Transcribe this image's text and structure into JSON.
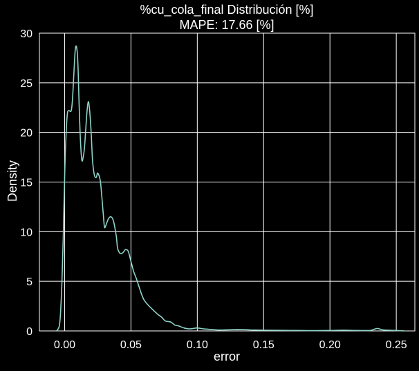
{
  "chart_data": {
    "type": "line",
    "title": "%cu_cola_final Distribución [%]",
    "subtitle": "MAPE: 17.66 [%]",
    "xlabel": "error",
    "ylabel": "Density",
    "xlim": [
      -0.019,
      0.264
    ],
    "ylim": [
      0,
      30
    ],
    "xticks": [
      0.0,
      0.05,
      0.1,
      0.15,
      0.2,
      0.25
    ],
    "xtick_labels": [
      "0.00",
      "0.05",
      "0.10",
      "0.15",
      "0.20",
      "0.25"
    ],
    "yticks": [
      0,
      5,
      10,
      15,
      20,
      25,
      30
    ],
    "ytick_labels": [
      "0",
      "5",
      "10",
      "15",
      "20",
      "25",
      "30"
    ],
    "grid": true,
    "background_color": "#000000",
    "grid_color": "#ffffff",
    "line_color": "#8dd3c7",
    "x": [
      -0.006,
      -0.004,
      -0.003,
      -0.002,
      -0.001,
      0.0,
      0.001,
      0.002,
      0.003,
      0.005,
      0.006,
      0.007,
      0.008,
      0.009,
      0.01,
      0.011,
      0.012,
      0.013,
      0.014,
      0.015,
      0.016,
      0.017,
      0.018,
      0.019,
      0.02,
      0.021,
      0.022,
      0.023,
      0.024,
      0.025,
      0.027,
      0.029,
      0.03,
      0.031,
      0.033,
      0.035,
      0.037,
      0.039,
      0.04,
      0.042,
      0.044,
      0.046,
      0.048,
      0.05,
      0.052,
      0.054,
      0.056,
      0.058,
      0.06,
      0.063,
      0.066,
      0.07,
      0.073,
      0.076,
      0.08,
      0.083,
      0.086,
      0.09,
      0.094,
      0.097,
      0.1,
      0.105,
      0.11,
      0.115,
      0.12,
      0.125,
      0.13,
      0.135,
      0.14,
      0.15,
      0.16,
      0.17,
      0.18,
      0.19,
      0.2,
      0.21,
      0.22,
      0.23,
      0.233,
      0.236,
      0.24,
      0.25,
      0.256
    ],
    "y": [
      0.0,
      0.5,
      2.0,
      5.0,
      9.5,
      15.5,
      19.5,
      21.8,
      22.2,
      22.2,
      23.5,
      26.0,
      28.3,
      28.6,
      27.0,
      22.5,
      19.0,
      17.2,
      17.5,
      18.5,
      20.5,
      22.3,
      23.1,
      22.0,
      20.0,
      17.3,
      16.0,
      15.5,
      15.5,
      15.9,
      15.0,
      12.0,
      10.5,
      10.6,
      11.3,
      11.5,
      11.0,
      9.5,
      8.3,
      7.8,
      7.9,
      8.2,
      8.0,
      7.0,
      6.0,
      5.3,
      4.5,
      3.7,
      3.1,
      2.6,
      2.2,
      1.7,
      1.4,
      1.0,
      0.9,
      0.6,
      0.5,
      0.3,
      0.2,
      0.25,
      0.3,
      0.2,
      0.15,
      0.1,
      0.1,
      0.12,
      0.15,
      0.13,
      0.1,
      0.08,
      0.06,
      0.05,
      0.04,
      0.03,
      0.05,
      0.08,
      0.05,
      0.05,
      0.15,
      0.25,
      0.1,
      0.05,
      0.0
    ]
  }
}
